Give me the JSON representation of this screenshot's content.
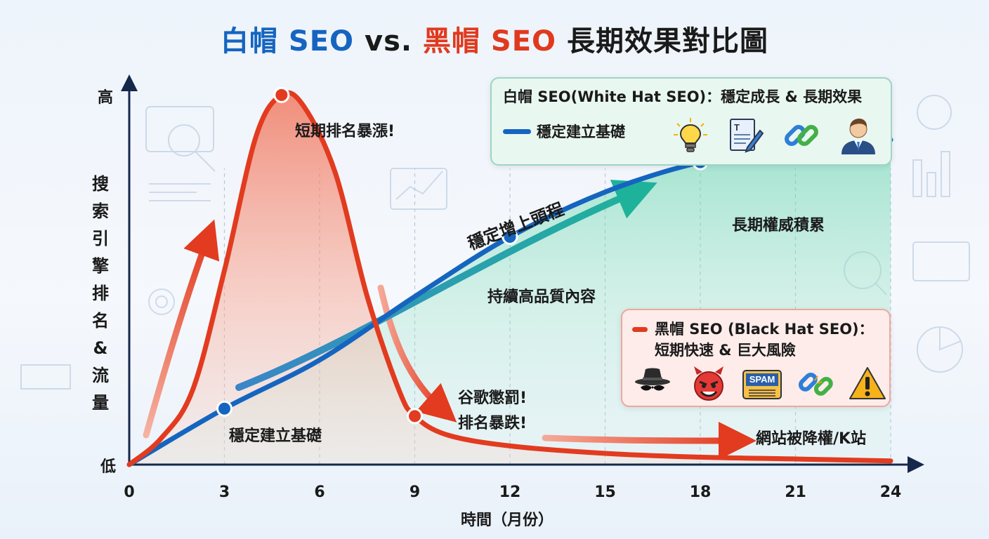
{
  "title": {
    "part1": "白帽 SEO",
    "part2": " vs. ",
    "part3": "黑帽 SEO",
    "part4": " 長期效果對比圖"
  },
  "white_panel": {
    "heading": "白帽 SEO(White Hat SEO)：穩定成長 & 長期效果",
    "legend_label": "穩定建立基礎",
    "icons": [
      "lightbulb-icon",
      "document-edit-icon",
      "link-icon",
      "businessman-icon"
    ]
  },
  "black_panel": {
    "heading_line1": "黑帽 SEO (Black Hat SEO)：",
    "heading_line2": "短期快速 & 巨大風險",
    "icons": [
      "spy-hat-icon",
      "devil-icon",
      "spam-icon",
      "broken-link-icon",
      "warning-icon"
    ],
    "spam_text": "SPAM"
  },
  "colors": {
    "white_hat": "#1565c0",
    "black_hat": "#e23b1f",
    "trend_arrow": "#1fa39a",
    "axis": "#15284b"
  },
  "chart_data": {
    "type": "line",
    "xlabel": "時間（月份）",
    "ylabel": "搜索引擎排名&流量",
    "y_high_label": "高",
    "y_low_label": "低",
    "x_ticks": [
      0,
      3,
      6,
      9,
      12,
      15,
      18,
      21,
      24
    ],
    "xlim": [
      0,
      24
    ],
    "ylim": [
      0,
      100
    ],
    "grid": "vertical dashed",
    "series": [
      {
        "name": "白帽 SEO",
        "x": [
          0,
          3,
          6,
          9,
          12,
          15,
          18,
          21,
          24
        ],
        "values": [
          0,
          15,
          28,
          45,
          61,
          73,
          81,
          85,
          87
        ]
      },
      {
        "name": "黑帽 SEO",
        "x": [
          0,
          1,
          2,
          3,
          4,
          4.8,
          5.5,
          6.5,
          7.5,
          8.5,
          9,
          10,
          12,
          15,
          18,
          21,
          24
        ],
        "values": [
          0,
          7,
          20,
          52,
          88,
          99,
          96,
          78,
          45,
          20,
          13,
          8,
          5,
          3,
          2,
          1.5,
          1
        ]
      }
    ],
    "annotations": {
      "peak": "短期排名暴漲!",
      "white_start": "穩定建立基礎",
      "white_mid": "持續高品質內容",
      "white_end": "長期權威積累",
      "trend": "穩定增上頭程",
      "penalty_line1": "谷歌懲罰!",
      "penalty_line2": "排名暴跌!",
      "downgrade": "網站被降權/K站"
    }
  }
}
